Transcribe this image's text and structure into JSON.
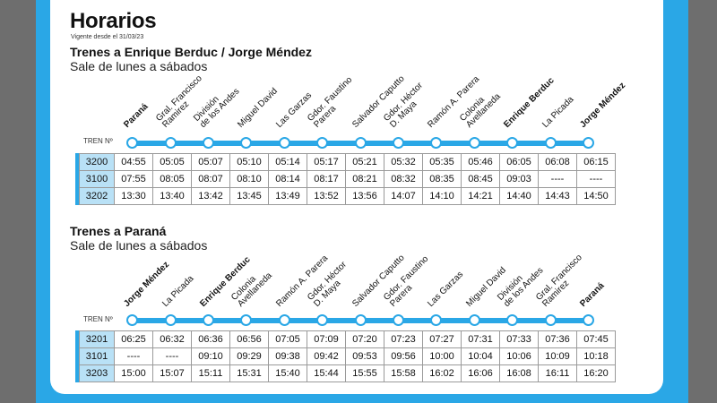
{
  "title": "Horarios",
  "validity": "Vigente desde el 31/03/23",
  "tren_label": "TREN Nº",
  "sections": [
    {
      "title": "Trenes a Enrique Berduc / Jorge Méndez",
      "subtitle": "Sale de lunes a sábados",
      "stations": [
        {
          "lines": [
            "Paraná"
          ],
          "bold": true
        },
        {
          "lines": [
            "Gral. Francisco",
            "Ramirez"
          ],
          "bold": false
        },
        {
          "lines": [
            "División",
            "de los Andes"
          ],
          "bold": false
        },
        {
          "lines": [
            "Miguel David"
          ],
          "bold": false
        },
        {
          "lines": [
            "Las Garzas"
          ],
          "bold": false
        },
        {
          "lines": [
            "Gdor. Faustino",
            "Parera"
          ],
          "bold": false
        },
        {
          "lines": [
            "Salvador Caputto"
          ],
          "bold": false
        },
        {
          "lines": [
            "Gdor. Héctor",
            "D. Maya"
          ],
          "bold": false
        },
        {
          "lines": [
            "Ramón A. Parera"
          ],
          "bold": false
        },
        {
          "lines": [
            "Colonia",
            "Avellaneda"
          ],
          "bold": false
        },
        {
          "lines": [
            "Enrique Berduc"
          ],
          "bold": true
        },
        {
          "lines": [
            "La Picada"
          ],
          "bold": false
        },
        {
          "lines": [
            "Jorge Méndez"
          ],
          "bold": true
        }
      ],
      "trains": [
        {
          "num": "3200",
          "times": [
            "04:55",
            "05:05",
            "05:07",
            "05:10",
            "05:14",
            "05:17",
            "05:21",
            "05:32",
            "05:35",
            "05:46",
            "06:05",
            "06:08",
            "06:15"
          ]
        },
        {
          "num": "3100",
          "times": [
            "07:55",
            "08:05",
            "08:07",
            "08:10",
            "08:14",
            "08:17",
            "08:21",
            "08:32",
            "08:35",
            "08:45",
            "09:03",
            "----",
            "----"
          ]
        },
        {
          "num": "3202",
          "times": [
            "13:30",
            "13:40",
            "13:42",
            "13:45",
            "13:49",
            "13:52",
            "13:56",
            "14:07",
            "14:10",
            "14:21",
            "14:40",
            "14:43",
            "14:50"
          ]
        }
      ]
    },
    {
      "title": "Trenes a Paraná",
      "subtitle": "Sale de lunes a sábados",
      "stations": [
        {
          "lines": [
            "Jorge Méndez"
          ],
          "bold": true
        },
        {
          "lines": [
            "La Picada"
          ],
          "bold": false
        },
        {
          "lines": [
            "Enrique Berduc"
          ],
          "bold": true
        },
        {
          "lines": [
            "Colonia",
            "Avellaneda"
          ],
          "bold": false
        },
        {
          "lines": [
            "Ramón A. Parera"
          ],
          "bold": false
        },
        {
          "lines": [
            "Gdor. Héctor",
            "D. Maya"
          ],
          "bold": false
        },
        {
          "lines": [
            "Salvador Caputto"
          ],
          "bold": false
        },
        {
          "lines": [
            "Gdor. Faustino",
            "Parera"
          ],
          "bold": false
        },
        {
          "lines": [
            "Las Garzas"
          ],
          "bold": false
        },
        {
          "lines": [
            "Miguel David"
          ],
          "bold": false
        },
        {
          "lines": [
            "División",
            "de los Andes"
          ],
          "bold": false
        },
        {
          "lines": [
            "Gral. Francisco",
            "Ramirez"
          ],
          "bold": false
        },
        {
          "lines": [
            "Paraná"
          ],
          "bold": true
        }
      ],
      "trains": [
        {
          "num": "3201",
          "times": [
            "06:25",
            "06:32",
            "06:36",
            "06:56",
            "07:05",
            "07:09",
            "07:20",
            "07:23",
            "07:27",
            "07:31",
            "07:33",
            "07:36",
            "07:45"
          ]
        },
        {
          "num": "3101",
          "times": [
            "----",
            "----",
            "09:10",
            "09:29",
            "09:38",
            "09:42",
            "09:53",
            "09:56",
            "10:00",
            "10:04",
            "10:06",
            "10:09",
            "10:18"
          ]
        },
        {
          "num": "3203",
          "times": [
            "15:00",
            "15:07",
            "15:11",
            "15:31",
            "15:40",
            "15:44",
            "15:55",
            "15:58",
            "16:02",
            "16:06",
            "16:08",
            "16:11",
            "16:20"
          ]
        }
      ]
    }
  ]
}
